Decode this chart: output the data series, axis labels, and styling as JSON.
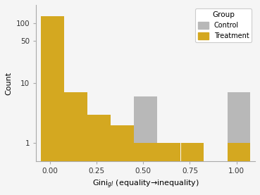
{
  "title": "",
  "xlabel": "Gini$_{gl}$ (equality→inequality)",
  "ylabel": "Count",
  "xlim": [
    -0.075,
    1.1
  ],
  "ylim_log": [
    0.5,
    200
  ],
  "yticks": [
    1,
    10,
    50,
    100
  ],
  "ytick_labels": [
    "1",
    "10",
    "50",
    "100"
  ],
  "xticks": [
    0.0,
    0.25,
    0.5,
    0.75,
    1.0
  ],
  "xtick_labels": [
    "0.00",
    "0.25",
    "0.50",
    "0.75",
    "1.00"
  ],
  "bin_edges": [
    -0.05,
    0.075,
    0.2,
    0.325,
    0.45,
    0.575,
    0.7,
    0.825,
    0.95,
    1.075
  ],
  "control_counts": [
    8,
    4,
    3,
    2,
    6,
    1,
    1,
    0,
    7
  ],
  "treatment_counts": [
    130,
    7,
    3,
    2,
    1,
    1,
    1,
    0,
    1
  ],
  "control_color": "#b8b8b8",
  "treatment_color": "#d4a820",
  "legend_title": "Group",
  "legend_labels": [
    "Control",
    "Treatment"
  ],
  "background_color": "#f5f5f5",
  "panel_background": "#f5f5f5",
  "figsize": [
    3.69,
    2.77
  ],
  "dpi": 100
}
